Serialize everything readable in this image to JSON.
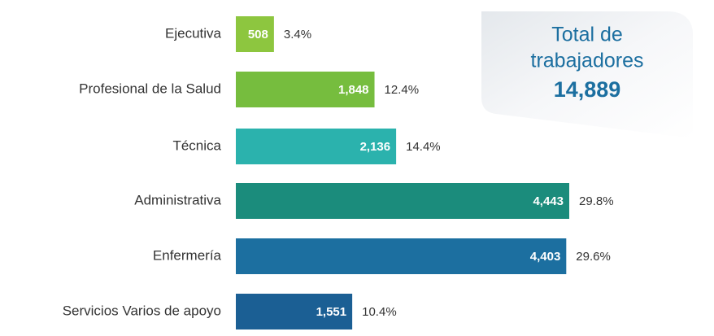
{
  "chart_data": {
    "type": "bar",
    "orientation": "horizontal",
    "categories": [
      "Ejecutiva",
      "Profesional de la Salud",
      "Técnica",
      "Administrativa",
      "Enfermería",
      "Servicios Varios de apoyo"
    ],
    "values": [
      508,
      1848,
      2136,
      4443,
      4403,
      1551
    ],
    "value_labels": [
      "508",
      "1,848",
      "2,136",
      "4,443",
      "4,403",
      "1,551"
    ],
    "percent_labels": [
      "3.4%",
      "12.4%",
      "14.4%",
      "29.8%",
      "29.6%",
      "10.4%"
    ],
    "colors": [
      "#8dc63f",
      "#76bd3e",
      "#2bb2ad",
      "#1b8c7c",
      "#1c6fa0",
      "#1b5f94"
    ],
    "xlim": [
      0,
      4443
    ],
    "total": {
      "title_line1": "Total de",
      "title_line2": "trabajadores",
      "value_label": "14,889"
    }
  }
}
